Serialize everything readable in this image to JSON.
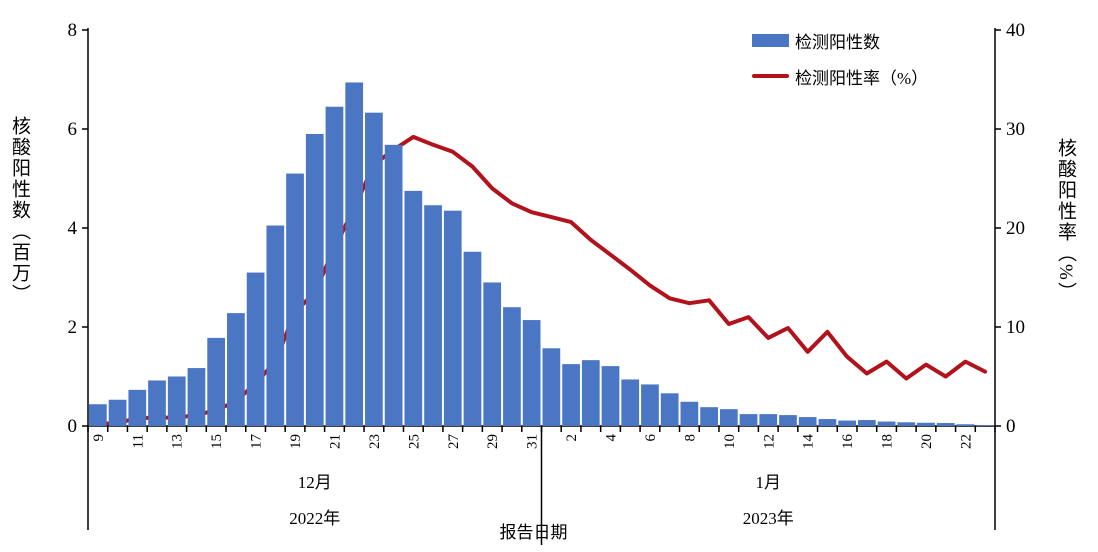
{
  "chart": {
    "legend": [
      {
        "label": "检测阳性数",
        "swatch": "bar"
      },
      {
        "label": "检测阳性率（%）",
        "swatch": "line"
      }
    ],
    "colors": {
      "bar": "#4A76C3",
      "line": "#B2121B",
      "axis": "#000000"
    },
    "left_axis": {
      "title": "核酸阳性数（百万）",
      "min": 0,
      "max": 8,
      "ticks": [
        0,
        2,
        4,
        6,
        8
      ]
    },
    "right_axis": {
      "title": "核酸阳性率（%）",
      "min": 0,
      "max": 40,
      "ticks": [
        0,
        10,
        20,
        30,
        40
      ]
    },
    "x_axis": {
      "title": "报告日期",
      "label_every": 2,
      "groups": [
        {
          "month": "12月",
          "year": "2022年",
          "days": 23
        },
        {
          "month": "1月",
          "year": "2023年",
          "days": 23
        }
      ]
    }
  },
  "chart_data": {
    "type": "bar",
    "title": "",
    "xlabel": "报告日期",
    "ylabel_left": "核酸阳性数（百万）",
    "ylabel_right": "核酸阳性率（%）",
    "ylim_left": [
      0,
      8
    ],
    "ylim_right": [
      0,
      40
    ],
    "grid": false,
    "legend_position": "top-right",
    "categories": [
      "9",
      "10",
      "11",
      "12",
      "13",
      "14",
      "15",
      "16",
      "17",
      "18",
      "19",
      "20",
      "21",
      "22",
      "23",
      "24",
      "25",
      "26",
      "27",
      "28",
      "29",
      "30",
      "31",
      "1",
      "2",
      "3",
      "4",
      "5",
      "6",
      "7",
      "8",
      "9",
      "10",
      "11",
      "12",
      "13",
      "14",
      "15",
      "16",
      "17",
      "18",
      "19",
      "20",
      "21",
      "22",
      "23"
    ],
    "series": [
      {
        "name": "检测阳性数",
        "type": "bar",
        "axis": "left",
        "unit": "百万",
        "values": [
          0.44,
          0.53,
          0.73,
          0.92,
          1.0,
          1.17,
          1.78,
          2.28,
          3.1,
          4.05,
          5.1,
          5.9,
          6.45,
          6.94,
          6.33,
          5.68,
          4.75,
          4.46,
          4.35,
          3.52,
          2.9,
          2.4,
          2.14,
          1.57,
          1.25,
          1.33,
          1.21,
          0.94,
          0.84,
          0.66,
          0.49,
          0.38,
          0.34,
          0.24,
          0.24,
          0.22,
          0.18,
          0.14,
          0.11,
          0.12,
          0.09,
          0.075,
          0.065,
          0.06,
          0.035,
          0.015
        ]
      },
      {
        "name": "检测阳性率（%）",
        "type": "line",
        "axis": "right",
        "unit": "%",
        "values": [
          0.2,
          0.3,
          0.8,
          0.85,
          0.85,
          1.1,
          1.6,
          2.5,
          4.3,
          6.5,
          11.5,
          13.5,
          18.0,
          22.0,
          26.4,
          27.9,
          29.2,
          28.4,
          27.7,
          26.2,
          24.0,
          22.5,
          21.6,
          21.1,
          20.6,
          18.8,
          17.3,
          15.8,
          14.2,
          12.9,
          12.4,
          12.7,
          10.3,
          11.0,
          8.9,
          9.9,
          7.5,
          9.5,
          7.0,
          5.3,
          6.5,
          4.8,
          6.2,
          5.0,
          6.5,
          5.5
        ]
      }
    ]
  }
}
